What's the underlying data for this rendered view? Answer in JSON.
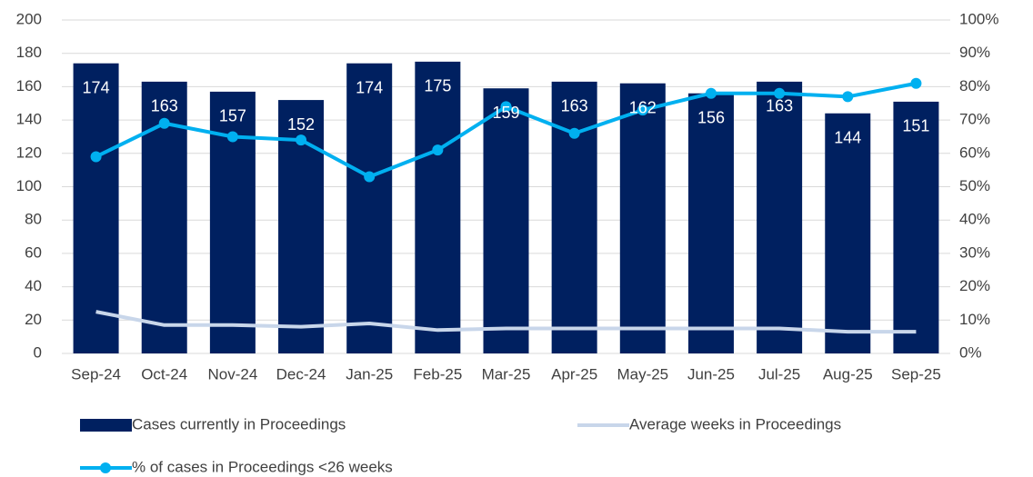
{
  "chart_data": {
    "type": "bar",
    "categories": [
      "Sep-24",
      "Oct-24",
      "Nov-24",
      "Dec-24",
      "Jan-25",
      "Feb-25",
      "Mar-25",
      "Apr-25",
      "May-25",
      "Jun-25",
      "Jul-25",
      "Aug-25",
      "Sep-25"
    ],
    "series": [
      {
        "name": "Cases currently in Proceedings",
        "type": "bar",
        "color": "#002060",
        "data_labels": true,
        "values": [
          174,
          163,
          157,
          152,
          174,
          175,
          159,
          163,
          162,
          156,
          163,
          144,
          151
        ]
      },
      {
        "name": "Average weeks in Proceedings",
        "type": "line",
        "color": "#c8d6ea",
        "values": [
          25,
          17,
          17,
          16,
          18,
          14,
          15,
          15,
          15,
          15,
          15,
          13,
          13
        ]
      },
      {
        "name": "% of cases in Proceedings <26 weeks",
        "type": "line",
        "axis": "y2",
        "color": "#00b0f0",
        "marker": "circle",
        "values": [
          59,
          69,
          65,
          64,
          53,
          61,
          74,
          66,
          73,
          78,
          78,
          77,
          81
        ]
      }
    ],
    "ylim": [
      0,
      200
    ],
    "yticks": [
      0,
      20,
      40,
      60,
      80,
      100,
      120,
      140,
      160,
      180,
      200
    ],
    "y2lim": [
      0,
      100
    ],
    "y2ticks": [
      {
        "value": 0,
        "label": "0%"
      },
      {
        "value": 10,
        "label": "10%"
      },
      {
        "value": 20,
        "label": "20%"
      },
      {
        "value": 30,
        "label": "30%"
      },
      {
        "value": 40,
        "label": "40%"
      },
      {
        "value": 50,
        "label": "50%"
      },
      {
        "value": 60,
        "label": "60%"
      },
      {
        "value": 70,
        "label": "70%"
      },
      {
        "value": 80,
        "label": "80%"
      },
      {
        "value": 90,
        "label": "90%"
      },
      {
        "value": 100,
        "label": "100%"
      }
    ],
    "grid": true
  }
}
